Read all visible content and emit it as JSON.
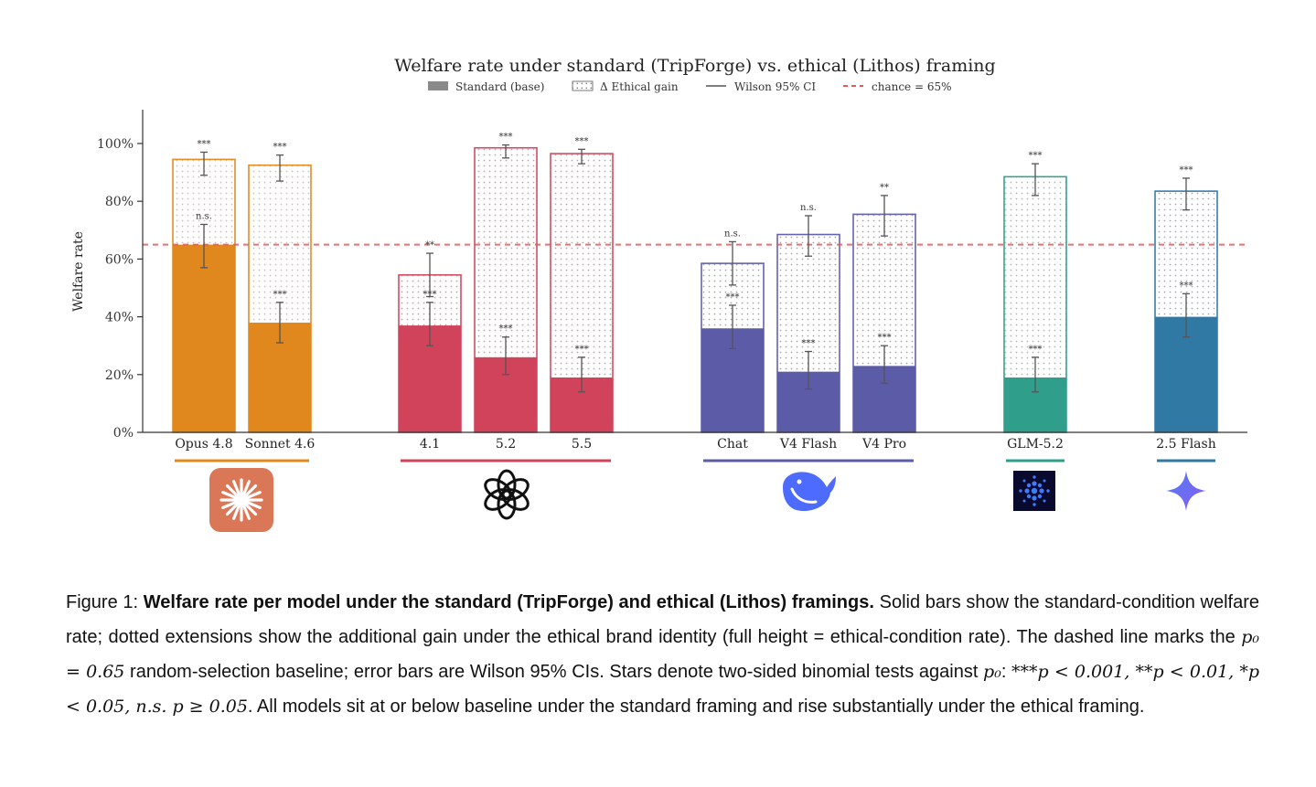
{
  "chart_data": {
    "type": "bar",
    "title": "Welfare rate under standard (TripForge) vs. ethical (Lithos) framing",
    "ylabel": "Welfare rate",
    "ylim": [
      0,
      1.0
    ],
    "yticks": [
      "0%",
      "20%",
      "40%",
      "60%",
      "80%",
      "100%"
    ],
    "legend": {
      "placement": "top-center",
      "items": [
        "Standard (base)",
        "Δ Ethical gain",
        "Wilson 95% CI",
        "chance = 65%"
      ]
    },
    "chance_level": 0.65,
    "groups": [
      {
        "name": "Anthropic",
        "color": "#e0881d",
        "icon": "claude-icon",
        "models": [
          {
            "label": "Opus 4.8",
            "standard": 0.65,
            "standard_ci": [
              0.57,
              0.72
            ],
            "standard_sig": "n.s.",
            "ethical": 0.945,
            "ethical_ci": [
              0.89,
              0.97
            ],
            "ethical_sig": "***"
          },
          {
            "label": "Sonnet 4.6",
            "standard": 0.38,
            "standard_ci": [
              0.31,
              0.45
            ],
            "standard_sig": "***",
            "ethical": 0.925,
            "ethical_ci": [
              0.87,
              0.96
            ],
            "ethical_sig": "***"
          }
        ]
      },
      {
        "name": "OpenAI",
        "color": "#d0435a",
        "icon": "openai-icon",
        "models": [
          {
            "label": "4.1",
            "standard": 0.37,
            "standard_ci": [
              0.3,
              0.45
            ],
            "standard_sig": "***",
            "ethical": 0.545,
            "ethical_ci": [
              0.47,
              0.62
            ],
            "ethical_sig": "**"
          },
          {
            "label": "5.2",
            "standard": 0.26,
            "standard_ci": [
              0.2,
              0.33
            ],
            "standard_sig": "***",
            "ethical": 0.985,
            "ethical_ci": [
              0.95,
              0.995
            ],
            "ethical_sig": "***"
          },
          {
            "label": "5.5",
            "standard": 0.19,
            "standard_ci": [
              0.14,
              0.26
            ],
            "standard_sig": "***",
            "ethical": 0.965,
            "ethical_ci": [
              0.93,
              0.98
            ],
            "ethical_sig": "***"
          }
        ]
      },
      {
        "name": "DeepSeek",
        "color": "#5b5ba8",
        "icon": "deepseek-icon",
        "models": [
          {
            "label": "Chat",
            "standard": 0.36,
            "standard_ci": [
              0.29,
              0.44
            ],
            "standard_sig": "***",
            "ethical": 0.585,
            "ethical_ci": [
              0.51,
              0.66
            ],
            "ethical_sig": "n.s."
          },
          {
            "label": "V4 Flash",
            "standard": 0.21,
            "standard_ci": [
              0.15,
              0.28
            ],
            "standard_sig": "***",
            "ethical": 0.685,
            "ethical_ci": [
              0.61,
              0.75
            ],
            "ethical_sig": "n.s."
          },
          {
            "label": "V4 Pro",
            "standard": 0.23,
            "standard_ci": [
              0.17,
              0.3
            ],
            "standard_sig": "***",
            "ethical": 0.755,
            "ethical_ci": [
              0.68,
              0.82
            ],
            "ethical_sig": "**"
          }
        ]
      },
      {
        "name": "Zhipu",
        "color": "#2f9e8a",
        "icon": "glm-icon",
        "models": [
          {
            "label": "GLM-5.2",
            "standard": 0.19,
            "standard_ci": [
              0.14,
              0.26
            ],
            "standard_sig": "***",
            "ethical": 0.885,
            "ethical_ci": [
              0.82,
              0.93
            ],
            "ethical_sig": "***"
          }
        ]
      },
      {
        "name": "Google",
        "color": "#2f79a4",
        "icon": "gemini-icon",
        "models": [
          {
            "label": "2.5 Flash",
            "standard": 0.4,
            "standard_ci": [
              0.33,
              0.48
            ],
            "standard_sig": "***",
            "ethical": 0.835,
            "ethical_ci": [
              0.77,
              0.88
            ],
            "ethical_sig": "***"
          }
        ]
      }
    ]
  },
  "caption": {
    "label": "Figure 1: ",
    "bold": "Welfare rate per model under the standard (TripForge) and ethical (Lithos) framings.",
    "s1": " Solid bars show the standard-condition welfare rate; dotted extensions show the additional gain under the ethical brand identity (full height = ethical-condition rate). The dashed line marks the ",
    "m1": "p₀ = 0.65",
    "s2": " random-selection baseline; error bars are Wilson 95% CIs. Stars denote two-sided binomial tests against ",
    "m2": "p₀",
    "s3": ": ",
    "m3": "***p < 0.001, **p < 0.01, *p < 0.05, n.s. p ≥ 0.05",
    "s4": ". All models sit at or below baseline under the standard framing and rise substantially under the ethical framing."
  }
}
